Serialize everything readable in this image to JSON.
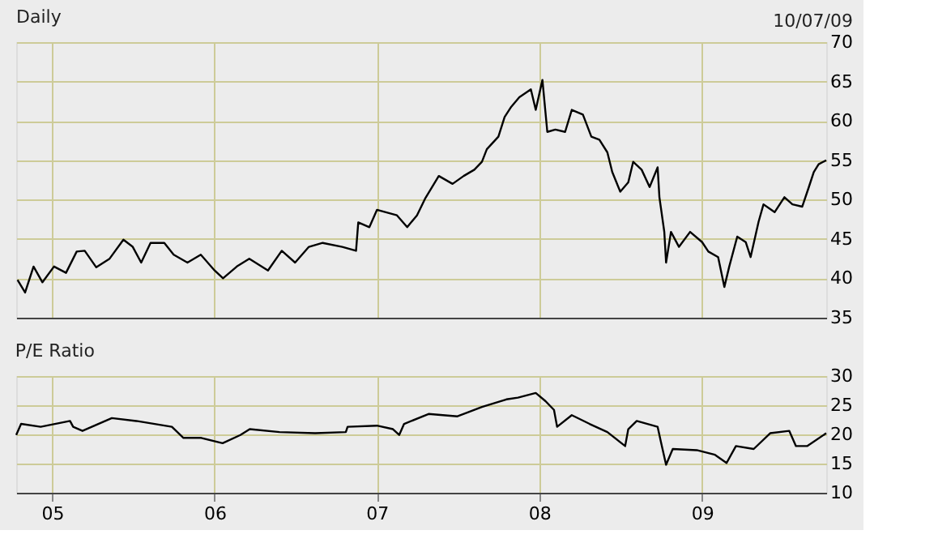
{
  "chart_data": [
    {
      "type": "line",
      "title": "Daily",
      "annotations": [
        "10/07/09"
      ],
      "xlim": [
        "2004-10-12",
        "2009-10-07"
      ],
      "ylim": [
        35,
        70
      ],
      "yticks": [
        35,
        40,
        45,
        50,
        55,
        60,
        65,
        70
      ],
      "xticks": [
        {
          "value": "2005-01-01",
          "label": null
        },
        {
          "value": "2006-01-01",
          "label": null
        },
        {
          "value": "2007-01-01",
          "label": null
        },
        {
          "value": "2008-01-01",
          "label": null
        },
        {
          "value": "2009-01-01",
          "label": null
        }
      ],
      "grid": true,
      "tick_labels": "y",
      "line_style": "solid",
      "marker": "none",
      "series": [
        {
          "color": "#000000",
          "x": [
            "2004-10-15",
            "2004-11-01",
            "2004-11-20",
            "2004-12-10",
            "2005-01-05",
            "2005-02-01",
            "2005-02-25",
            "2005-03-15",
            "2005-04-10",
            "2005-05-10",
            "2005-06-10",
            "2005-07-01",
            "2005-07-20",
            "2005-08-10",
            "2005-09-10",
            "2005-10-01",
            "2005-11-01",
            "2005-12-01",
            "2006-01-01",
            "2006-01-20",
            "2006-02-20",
            "2006-03-20",
            "2006-05-01",
            "2006-06-01",
            "2006-07-01",
            "2006-08-01",
            "2006-09-01",
            "2006-10-15",
            "2006-11-15",
            "2006-11-20",
            "2006-12-15",
            "2007-01-01",
            "2007-02-15",
            "2007-03-10",
            "2007-04-01",
            "2007-04-20",
            "2007-05-20",
            "2007-06-20",
            "2007-07-15",
            "2007-08-08",
            "2007-08-25",
            "2007-09-05",
            "2007-10-01",
            "2007-10-15",
            "2007-10-30",
            "2007-11-17",
            "2007-12-13",
            "2007-12-24",
            "2008-01-08",
            "2008-01-19",
            "2008-02-06",
            "2008-02-28",
            "2008-03-14",
            "2008-04-08",
            "2008-04-27",
            "2008-05-15",
            "2008-06-02",
            "2008-06-13",
            "2008-07-01",
            "2008-07-19",
            "2008-07-30",
            "2008-08-18",
            "2008-09-05",
            "2008-09-23",
            "2008-09-27",
            "2008-10-08",
            "2008-10-12",
            "2008-10-23",
            "2008-11-10",
            "2008-12-05",
            "2009-01-01",
            "2009-01-15",
            "2009-02-06",
            "2009-02-20",
            "2009-03-03",
            "2009-03-21",
            "2009-04-09",
            "2009-04-20",
            "2009-05-08",
            "2009-05-19",
            "2009-06-13",
            "2009-07-05",
            "2009-07-23",
            "2009-08-14",
            "2009-08-29",
            "2009-09-09",
            "2009-09-20",
            "2009-10-07"
          ],
          "values": [
            39.8,
            38.2,
            41.5,
            39.5,
            41.5,
            40.7,
            43.4,
            43.5,
            41.4,
            42.5,
            44.9,
            44,
            42,
            44.5,
            44.5,
            43,
            42,
            43,
            41,
            40,
            41.5,
            42.5,
            41,
            43.5,
            42,
            44,
            44.5,
            44,
            43.5,
            47.1,
            46.5,
            48.7,
            48,
            46.5,
            48,
            50.2,
            53,
            52,
            53,
            53.8,
            54.8,
            56.4,
            58,
            60.5,
            61.8,
            63,
            64,
            61.4,
            65.2,
            58.6,
            58.9,
            58.6,
            61.4,
            60.8,
            58,
            57.6,
            56,
            53.5,
            51,
            52.2,
            54.8,
            53.8,
            51.6,
            54.1,
            50.3,
            45.9,
            42,
            45.9,
            44,
            45.9,
            44.6,
            43.4,
            42.7,
            38.9,
            41.5,
            45.3,
            44.6,
            42.7,
            47.2,
            49.4,
            48.4,
            50.3,
            49.4,
            49.1,
            51.6,
            53.5,
            54.5,
            55
          ]
        }
      ]
    },
    {
      "type": "line",
      "title": "P/E Ratio",
      "xlim": [
        "2004-10-12",
        "2009-10-07"
      ],
      "ylim": [
        10,
        30
      ],
      "yticks": [
        10,
        15,
        20,
        25,
        30
      ],
      "xticks": [
        {
          "value": "2005-01-01",
          "label": "05"
        },
        {
          "value": "2006-01-01",
          "label": "06"
        },
        {
          "value": "2007-01-01",
          "label": "07"
        },
        {
          "value": "2008-01-01",
          "label": "08"
        },
        {
          "value": "2009-01-01",
          "label": "09"
        }
      ],
      "grid": true,
      "line_style": "solid",
      "marker": "none",
      "series": [
        {
          "color": "#000000",
          "x": [
            "2004-10-12",
            "2004-10-23",
            "2004-12-06",
            "2005-02-10",
            "2005-02-17",
            "2005-03-10",
            "2005-05-15",
            "2005-07-09",
            "2005-09-27",
            "2005-10-23",
            "2005-12-02",
            "2006-01-19",
            "2006-02-28",
            "2006-03-21",
            "2006-05-27",
            "2006-08-15",
            "2006-10-23",
            "2006-10-27",
            "2007-01-01",
            "2007-02-06",
            "2007-02-20",
            "2007-03-03",
            "2007-04-27",
            "2007-07-01",
            "2007-08-25",
            "2007-10-19",
            "2007-11-14",
            "2007-12-24",
            "2008-01-15",
            "2008-02-03",
            "2008-02-10",
            "2008-03-14",
            "2008-04-23",
            "2008-06-02",
            "2008-07-12",
            "2008-07-19",
            "2008-08-07",
            "2008-09-23",
            "2008-10-01",
            "2008-10-12",
            "2008-10-27",
            "2008-12-20",
            "2009-01-30",
            "2009-02-25",
            "2009-03-18",
            "2009-04-27",
            "2009-06-03",
            "2009-07-16",
            "2009-07-31",
            "2009-08-25",
            "2009-10-07"
          ],
          "values": [
            19.9,
            21.8,
            21.3,
            22.3,
            21.3,
            20.6,
            22.8,
            22.3,
            21.3,
            19.4,
            19.4,
            18.5,
            19.9,
            20.9,
            20.4,
            20.2,
            20.4,
            21.3,
            21.5,
            20.9,
            19.9,
            21.8,
            23.5,
            23.1,
            24.7,
            26,
            26.3,
            27.1,
            25.7,
            24.2,
            21.3,
            23.3,
            21.8,
            20.4,
            18,
            20.9,
            22.3,
            21.3,
            18.5,
            14.8,
            17.5,
            17.3,
            16.5,
            15.1,
            18,
            17.5,
            20.2,
            20.6,
            18,
            18,
            20.2
          ]
        }
      ]
    }
  ]
}
